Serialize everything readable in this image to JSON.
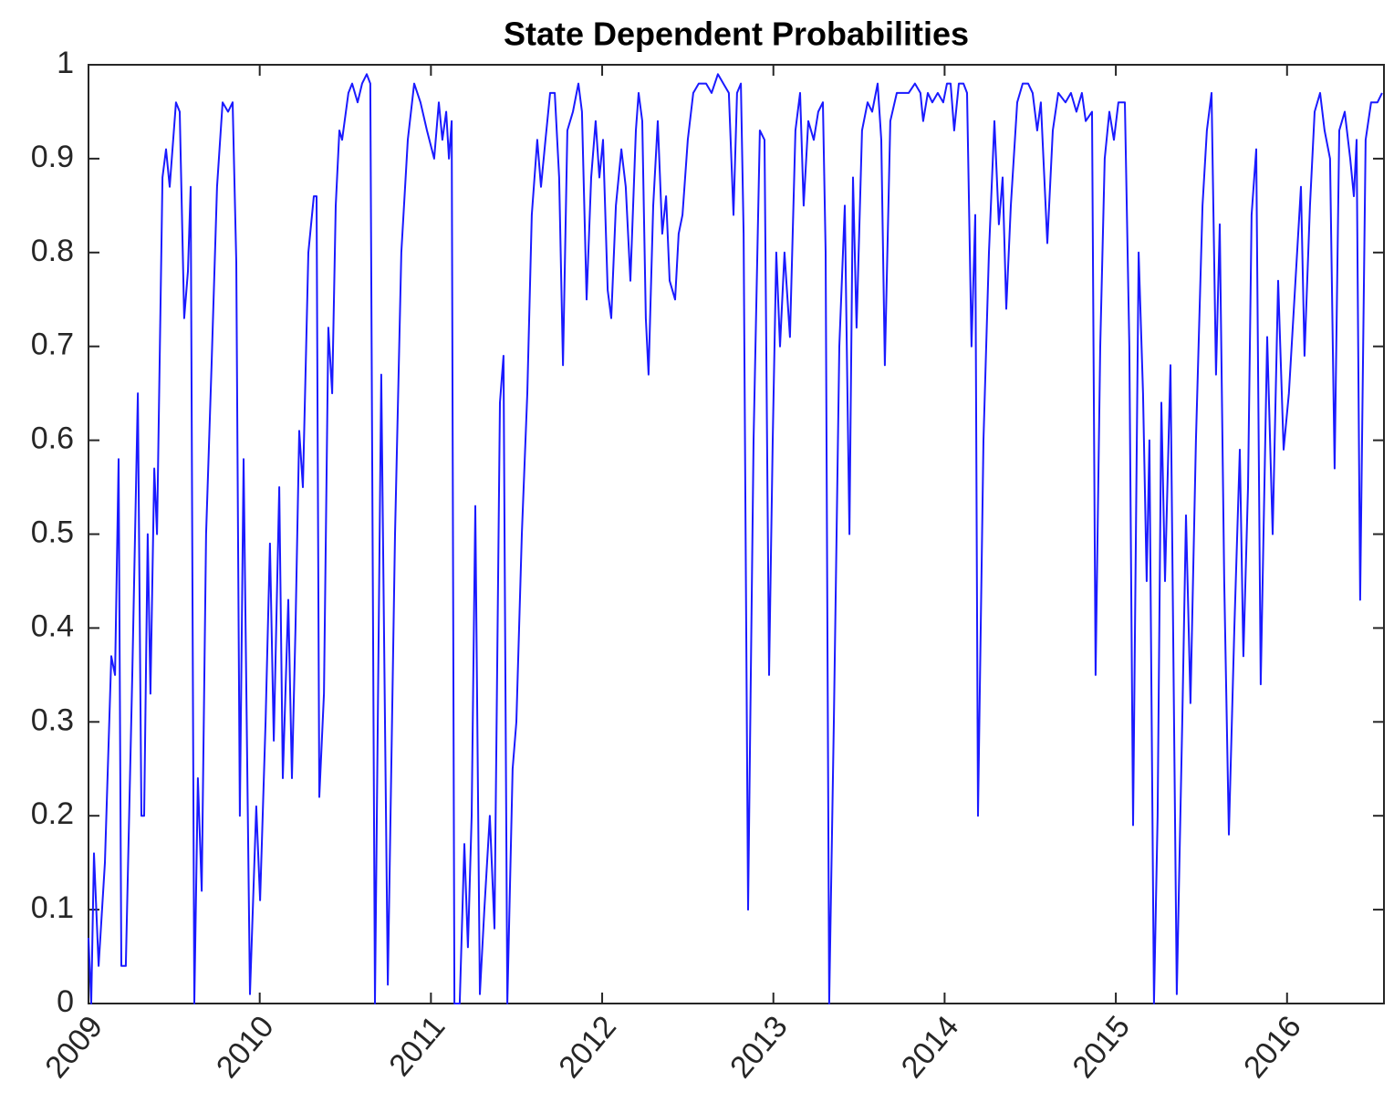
{
  "chart_data": {
    "type": "line",
    "title": "State Dependent Probabilities",
    "color": "#1a1aff",
    "x": [
      2009.0,
      2009.016,
      2009.032,
      2009.059,
      2009.096,
      2009.133,
      2009.155,
      2009.176,
      2009.192,
      2009.218,
      2009.256,
      2009.288,
      2009.309,
      2009.325,
      2009.346,
      2009.362,
      2009.384,
      2009.4,
      2009.432,
      2009.453,
      2009.474,
      2009.511,
      2009.533,
      2009.559,
      2009.581,
      2009.597,
      2009.618,
      2009.639,
      2009.661,
      2009.687,
      2009.719,
      2009.751,
      2009.783,
      2009.815,
      2009.842,
      2009.863,
      2009.884,
      2009.906,
      2009.943,
      2009.98,
      2010.002,
      2010.034,
      2010.06,
      2010.082,
      2010.114,
      2010.135,
      2010.167,
      2010.188,
      2010.209,
      2010.231,
      2010.252,
      2010.284,
      2010.316,
      2010.332,
      2010.348,
      2010.375,
      2010.401,
      2010.423,
      2010.444,
      2010.465,
      2010.481,
      2010.518,
      2010.54,
      2010.572,
      2010.598,
      2010.625,
      2010.646,
      2010.673,
      2010.71,
      2010.748,
      2010.79,
      2010.827,
      2010.865,
      2010.902,
      2010.939,
      2010.977,
      2011.019,
      2011.046,
      2011.067,
      2011.089,
      2011.105,
      2011.121,
      2011.137,
      2011.168,
      2011.195,
      2011.216,
      2011.238,
      2011.259,
      2011.286,
      2011.312,
      2011.344,
      2011.371,
      2011.403,
      2011.424,
      2011.446,
      2011.477,
      2011.499,
      2011.531,
      2011.563,
      2011.589,
      2011.621,
      2011.643,
      2011.669,
      2011.696,
      2011.723,
      2011.749,
      2011.771,
      2011.797,
      2011.829,
      2011.861,
      2011.882,
      2011.909,
      2011.936,
      2011.962,
      2011.984,
      2012.005,
      2012.032,
      2012.053,
      2012.08,
      2012.112,
      2012.138,
      2012.165,
      2012.197,
      2012.213,
      2012.234,
      2012.255,
      2012.271,
      2012.298,
      2012.325,
      2012.351,
      2012.373,
      2012.394,
      2012.426,
      2012.447,
      2012.469,
      2012.5,
      2012.532,
      2012.564,
      2012.607,
      2012.639,
      2012.676,
      2012.708,
      2012.74,
      2012.767,
      2012.788,
      2012.81,
      2012.826,
      2012.852,
      2012.884,
      2012.921,
      2012.948,
      2012.975,
      2012.996,
      2013.017,
      2013.039,
      2013.065,
      2013.097,
      2013.129,
      2013.156,
      2013.177,
      2013.204,
      2013.236,
      2013.262,
      2013.289,
      2013.305,
      2013.326,
      2013.353,
      2013.385,
      2013.417,
      2013.444,
      2013.465,
      2013.486,
      2013.518,
      2013.55,
      2013.577,
      2013.609,
      2013.63,
      2013.651,
      2013.683,
      2013.721,
      2013.758,
      2013.79,
      2013.827,
      2013.859,
      2013.875,
      2013.902,
      2013.928,
      2013.96,
      2013.992,
      2014.014,
      2014.035,
      2014.056,
      2014.083,
      2014.11,
      2014.131,
      2014.157,
      2014.179,
      2014.195,
      2014.227,
      2014.259,
      2014.291,
      2014.317,
      2014.339,
      2014.36,
      2014.387,
      2014.424,
      2014.456,
      2014.488,
      2014.514,
      2014.541,
      2014.562,
      2014.6,
      2014.632,
      2014.664,
      2014.706,
      2014.738,
      2014.77,
      2014.802,
      2014.824,
      2014.861,
      2014.882,
      2014.909,
      2014.935,
      2014.962,
      2014.989,
      2015.015,
      2015.053,
      2015.079,
      2015.101,
      2015.133,
      2015.159,
      2015.18,
      2015.196,
      2015.223,
      2015.244,
      2015.266,
      2015.287,
      2015.319,
      2015.356,
      2015.388,
      2015.41,
      2015.436,
      2015.468,
      2015.506,
      2015.532,
      2015.559,
      2015.585,
      2015.607,
      2015.633,
      2015.66,
      2015.692,
      2015.724,
      2015.745,
      2015.772,
      2015.793,
      2015.82,
      2015.846,
      2015.884,
      2015.916,
      2015.948,
      2015.98,
      2016.011,
      2016.043,
      2016.081,
      2016.102,
      2016.134,
      2016.161,
      2016.193,
      2016.219,
      2016.251,
      2016.278,
      2016.305,
      2016.337,
      2016.369,
      2016.39,
      2016.406,
      2016.427,
      2016.459,
      2016.491,
      2016.528,
      2016.555
    ],
    "values": [
      0.07,
      0.0,
      0.16,
      0.04,
      0.15,
      0.37,
      0.35,
      0.58,
      0.04,
      0.04,
      0.35,
      0.65,
      0.2,
      0.2,
      0.5,
      0.33,
      0.57,
      0.5,
      0.88,
      0.91,
      0.87,
      0.96,
      0.95,
      0.73,
      0.78,
      0.87,
      0.0,
      0.24,
      0.12,
      0.5,
      0.68,
      0.87,
      0.96,
      0.95,
      0.96,
      0.79,
      0.2,
      0.58,
      0.01,
      0.21,
      0.11,
      0.3,
      0.49,
      0.28,
      0.55,
      0.24,
      0.43,
      0.24,
      0.4,
      0.61,
      0.55,
      0.8,
      0.86,
      0.86,
      0.22,
      0.33,
      0.72,
      0.65,
      0.85,
      0.93,
      0.92,
      0.97,
      0.98,
      0.96,
      0.98,
      0.99,
      0.98,
      0.0,
      0.67,
      0.02,
      0.5,
      0.8,
      0.92,
      0.98,
      0.96,
      0.93,
      0.9,
      0.96,
      0.92,
      0.95,
      0.9,
      0.94,
      0.0,
      0.0,
      0.17,
      0.06,
      0.2,
      0.53,
      0.01,
      0.1,
      0.2,
      0.08,
      0.64,
      0.69,
      0.0,
      0.25,
      0.3,
      0.5,
      0.65,
      0.84,
      0.92,
      0.87,
      0.92,
      0.97,
      0.97,
      0.88,
      0.68,
      0.93,
      0.95,
      0.98,
      0.95,
      0.75,
      0.88,
      0.94,
      0.88,
      0.92,
      0.76,
      0.73,
      0.85,
      0.91,
      0.87,
      0.77,
      0.93,
      0.97,
      0.94,
      0.73,
      0.67,
      0.85,
      0.94,
      0.82,
      0.86,
      0.77,
      0.75,
      0.82,
      0.84,
      0.92,
      0.97,
      0.98,
      0.98,
      0.97,
      0.99,
      0.98,
      0.97,
      0.84,
      0.97,
      0.98,
      0.82,
      0.1,
      0.6,
      0.93,
      0.92,
      0.35,
      0.6,
      0.8,
      0.7,
      0.8,
      0.71,
      0.93,
      0.97,
      0.85,
      0.94,
      0.92,
      0.95,
      0.96,
      0.8,
      0.0,
      0.3,
      0.7,
      0.85,
      0.5,
      0.88,
      0.72,
      0.93,
      0.96,
      0.95,
      0.98,
      0.92,
      0.68,
      0.94,
      0.97,
      0.97,
      0.97,
      0.98,
      0.97,
      0.94,
      0.97,
      0.96,
      0.97,
      0.96,
      0.98,
      0.98,
      0.93,
      0.98,
      0.98,
      0.97,
      0.7,
      0.84,
      0.2,
      0.6,
      0.8,
      0.94,
      0.83,
      0.88,
      0.74,
      0.85,
      0.96,
      0.98,
      0.98,
      0.97,
      0.93,
      0.96,
      0.81,
      0.93,
      0.97,
      0.96,
      0.97,
      0.95,
      0.97,
      0.94,
      0.95,
      0.35,
      0.7,
      0.9,
      0.95,
      0.92,
      0.96,
      0.96,
      0.7,
      0.19,
      0.8,
      0.65,
      0.45,
      0.6,
      0.0,
      0.2,
      0.64,
      0.45,
      0.68,
      0.01,
      0.3,
      0.52,
      0.32,
      0.6,
      0.85,
      0.93,
      0.97,
      0.67,
      0.83,
      0.45,
      0.18,
      0.4,
      0.59,
      0.37,
      0.55,
      0.84,
      0.91,
      0.34,
      0.71,
      0.5,
      0.77,
      0.59,
      0.65,
      0.75,
      0.87,
      0.69,
      0.85,
      0.95,
      0.97,
      0.93,
      0.9,
      0.57,
      0.93,
      0.95,
      0.9,
      0.86,
      0.92,
      0.43,
      0.92,
      0.96,
      0.96,
      0.97
    ],
    "xlim": [
      2009,
      2016.566
    ],
    "xticks": [
      2009,
      2010,
      2011,
      2012,
      2013,
      2014,
      2015,
      2016
    ],
    "ylim": [
      0,
      1
    ],
    "yticks": [
      0,
      0.1,
      0.2,
      0.3,
      0.4,
      0.5,
      0.6,
      0.7,
      0.8,
      0.9,
      1
    ],
    "grid": false
  }
}
